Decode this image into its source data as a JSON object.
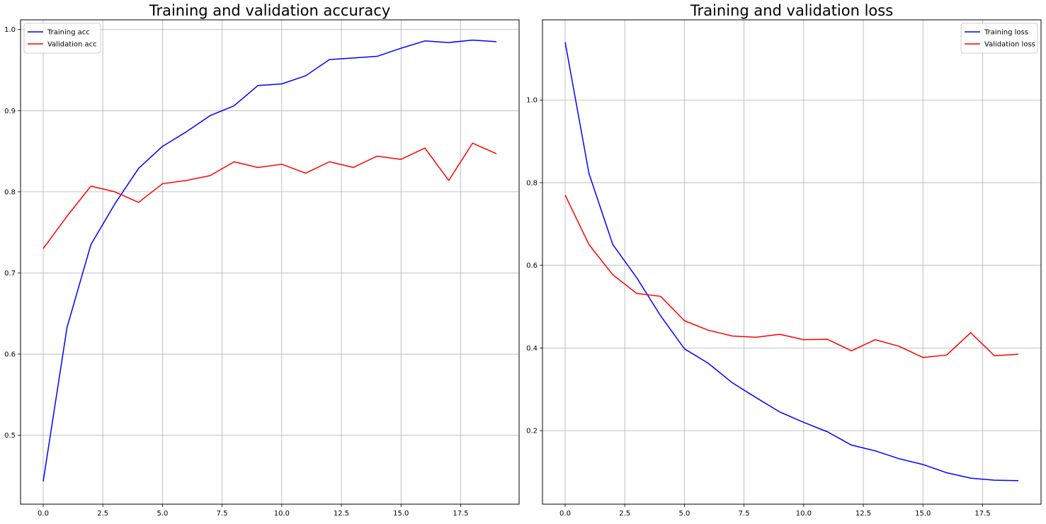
{
  "chart_data": [
    {
      "type": "line",
      "title": "Training and validation accuracy",
      "xlabel": "",
      "ylabel": "",
      "xlim": [
        -0.95,
        19.95
      ],
      "ylim": [
        0.415,
        1.012
      ],
      "xticks": [
        0.0,
        2.5,
        5.0,
        7.5,
        10.0,
        12.5,
        15.0,
        17.5
      ],
      "xtick_labels": [
        "0.0",
        "2.5",
        "5.0",
        "7.5",
        "10.0",
        "12.5",
        "15.0",
        "17.5"
      ],
      "yticks": [
        0.5,
        0.6,
        0.7,
        0.8,
        0.9,
        1.0
      ],
      "ytick_labels": [
        "0.5",
        "0.6",
        "0.7",
        "0.8",
        "0.9",
        "1.0"
      ],
      "grid": true,
      "legend_position": "upper-left",
      "x": [
        0,
        1,
        2,
        3,
        4,
        5,
        6,
        7,
        8,
        9,
        10,
        11,
        12,
        13,
        14,
        15,
        16,
        17,
        18,
        19
      ],
      "series": [
        {
          "name": "Training acc",
          "color": "#0000ff",
          "values": [
            0.443,
            0.633,
            0.735,
            0.785,
            0.829,
            0.856,
            0.874,
            0.894,
            0.906,
            0.931,
            0.933,
            0.943,
            0.963,
            0.965,
            0.967,
            0.977,
            0.986,
            0.984,
            0.987,
            0.985
          ]
        },
        {
          "name": "Validation acc",
          "color": "#ff0000",
          "values": [
            0.73,
            0.77,
            0.807,
            0.8,
            0.787,
            0.81,
            0.814,
            0.82,
            0.837,
            0.83,
            0.834,
            0.823,
            0.837,
            0.83,
            0.844,
            0.84,
            0.854,
            0.814,
            0.86,
            0.847
          ]
        }
      ]
    },
    {
      "type": "line",
      "title": "Training and validation loss",
      "xlabel": "",
      "ylabel": "",
      "xlim": [
        -0.95,
        19.95
      ],
      "ylim": [
        0.022,
        1.194
      ],
      "xticks": [
        0.0,
        2.5,
        5.0,
        7.5,
        10.0,
        12.5,
        15.0,
        17.5
      ],
      "xtick_labels": [
        "0.0",
        "2.5",
        "5.0",
        "7.5",
        "10.0",
        "12.5",
        "15.0",
        "17.5"
      ],
      "yticks": [
        0.2,
        0.4,
        0.6,
        0.8,
        1.0
      ],
      "ytick_labels": [
        "0.2",
        "0.4",
        "0.6",
        "0.8",
        "1.0"
      ],
      "grid": true,
      "legend_position": "upper-right",
      "x": [
        0,
        1,
        2,
        3,
        4,
        5,
        6,
        7,
        8,
        9,
        10,
        11,
        12,
        13,
        14,
        15,
        16,
        17,
        18,
        19
      ],
      "series": [
        {
          "name": "Training loss",
          "color": "#0000ff",
          "values": [
            1.14,
            0.822,
            0.65,
            0.57,
            0.478,
            0.398,
            0.363,
            0.316,
            0.28,
            0.245,
            0.22,
            0.197,
            0.165,
            0.151,
            0.132,
            0.118,
            0.098,
            0.085,
            0.08,
            0.079
          ]
        },
        {
          "name": "Validation loss",
          "color": "#ff0000",
          "values": [
            0.77,
            0.65,
            0.577,
            0.532,
            0.525,
            0.466,
            0.443,
            0.429,
            0.426,
            0.433,
            0.42,
            0.421,
            0.393,
            0.42,
            0.404,
            0.377,
            0.383,
            0.437,
            0.381,
            0.385
          ]
        }
      ]
    }
  ]
}
